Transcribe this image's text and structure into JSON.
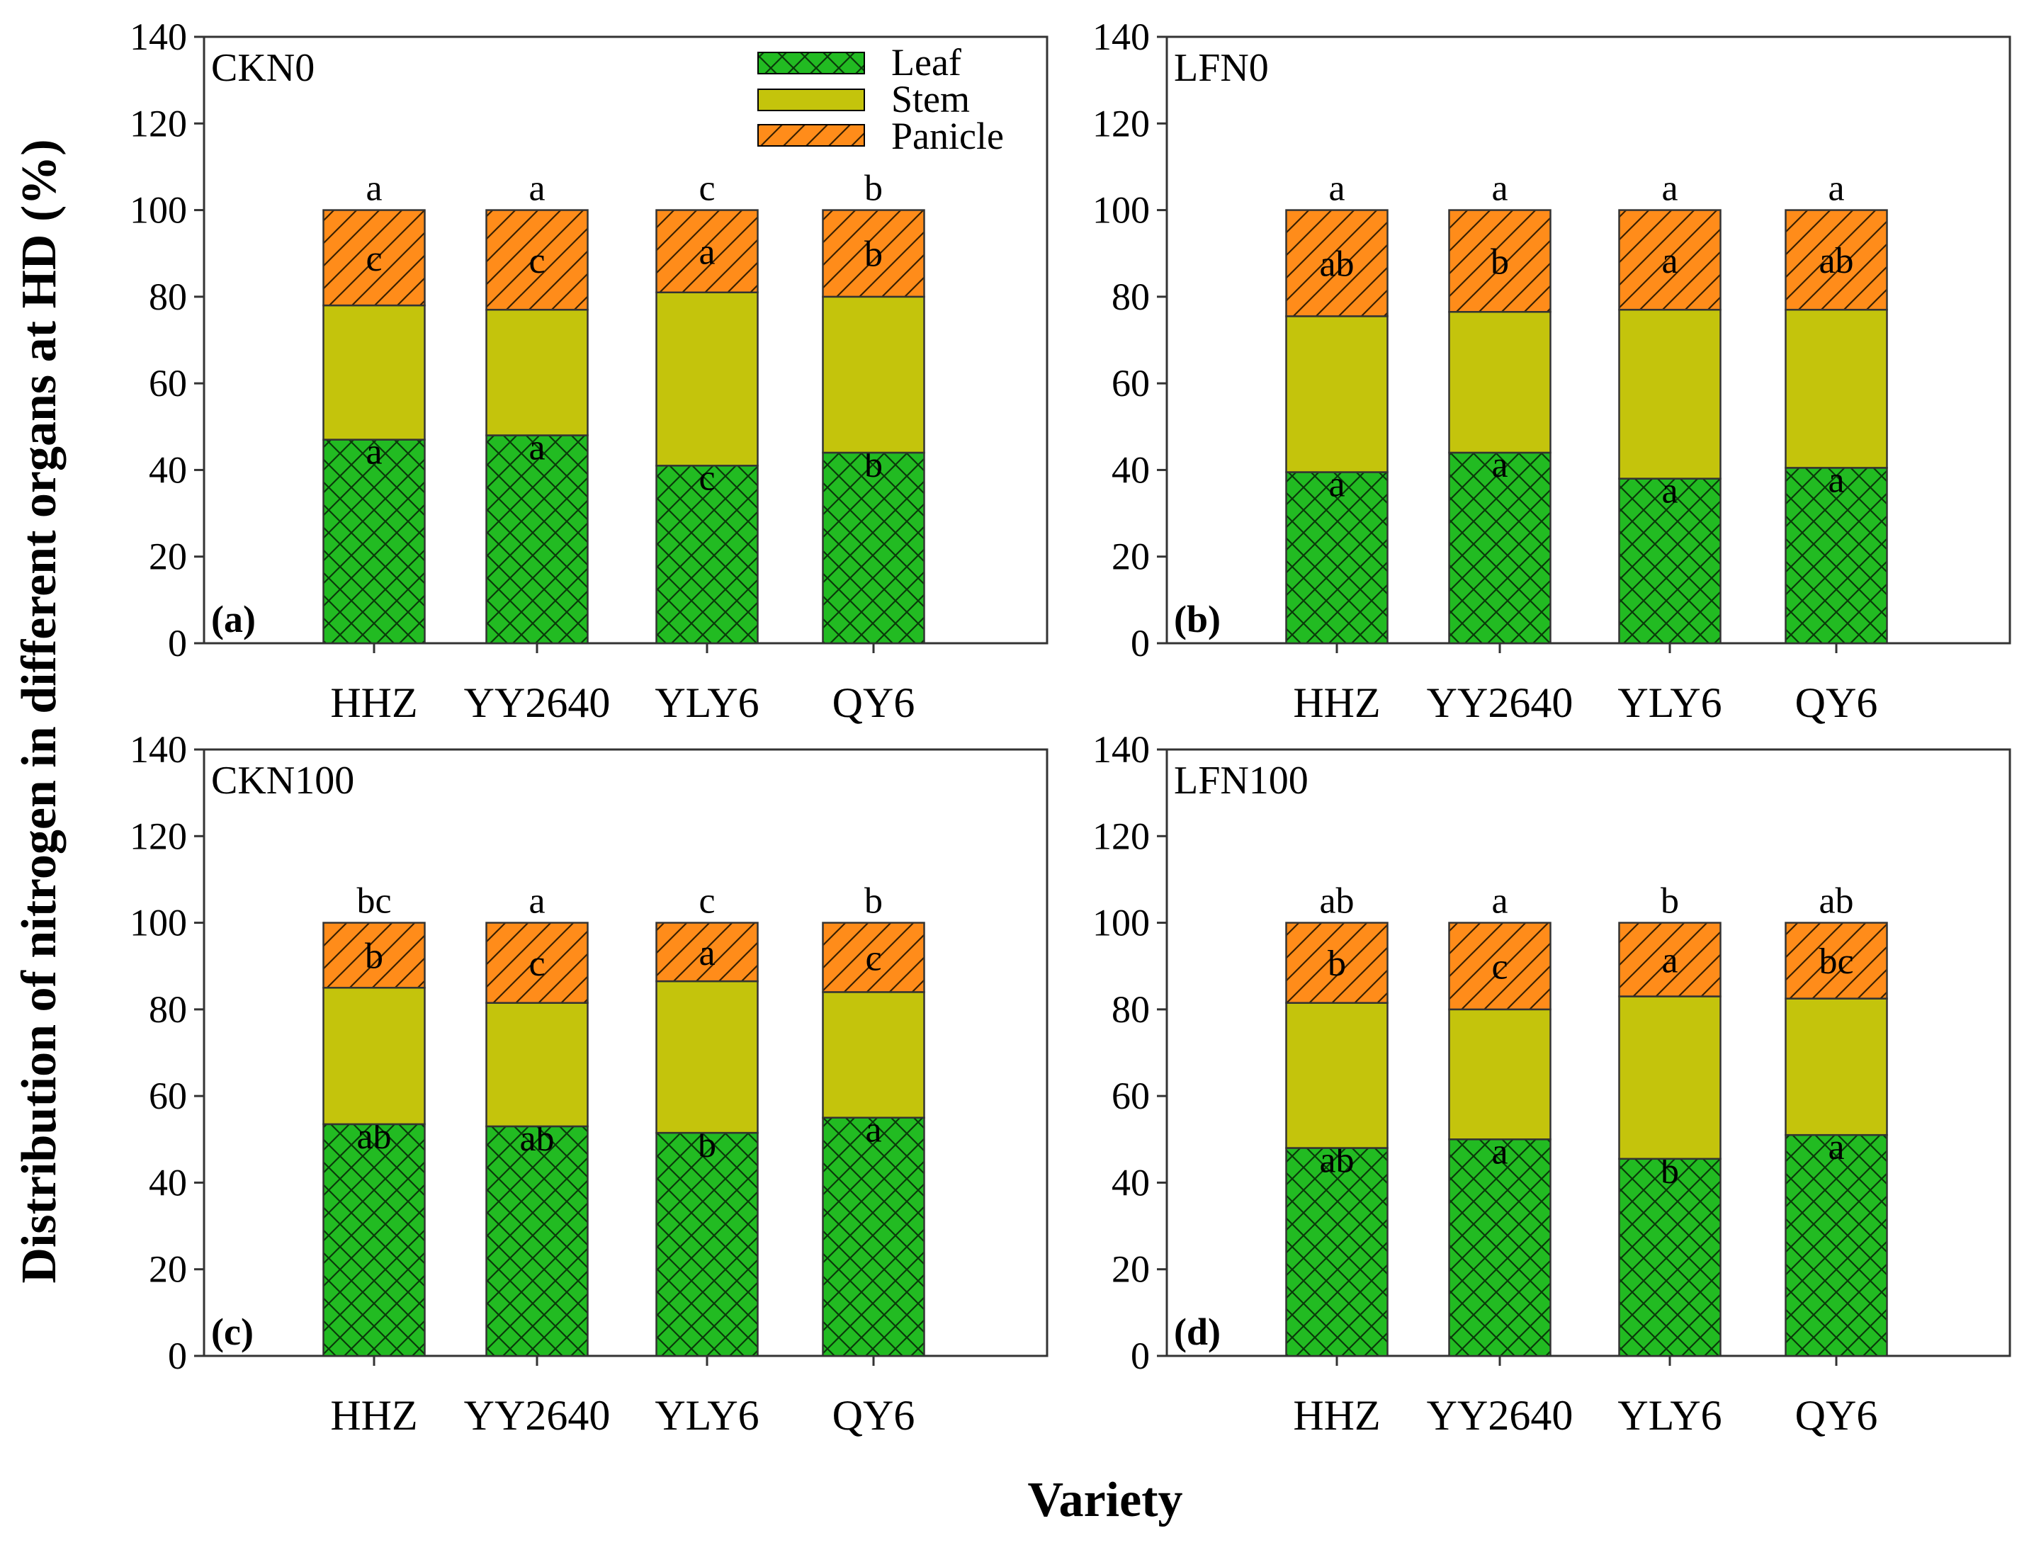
{
  "ylabel": "Distribution of nitrogen in different organs at HD (%)",
  "xlabel": "Variety",
  "legend": [
    {
      "key": "leaf",
      "label": "Leaf",
      "color": "#22BB22",
      "pattern": "crosshatch"
    },
    {
      "key": "stem",
      "label": "Stem",
      "color": "#C4C40C",
      "pattern": "solid"
    },
    {
      "key": "panicle",
      "label": "Panicle",
      "color": "#FF8C1A",
      "pattern": "diagonal"
    }
  ],
  "chart_data": [
    {
      "type": "bar",
      "stacked": true,
      "title": "CKN0",
      "tag": "(a)",
      "categories": [
        "HHZ",
        "YY2640",
        "YLY6",
        "QY6"
      ],
      "ylim": [
        0,
        140
      ],
      "yticks": [
        0,
        20,
        40,
        60,
        80,
        100,
        120,
        140
      ],
      "series": [
        {
          "name": "Leaf",
          "values": [
            47,
            48,
            41,
            44
          ],
          "letters": [
            "a",
            "a",
            "c",
            "b"
          ]
        },
        {
          "name": "Stem",
          "values": [
            31,
            29,
            40,
            36
          ],
          "letters": [
            "",
            "",
            "",
            ""
          ]
        },
        {
          "name": "Panicle",
          "values": [
            22,
            23,
            19,
            20
          ],
          "letters": [
            "c",
            "c",
            "a",
            "b"
          ]
        }
      ],
      "top_letters": [
        "a",
        "a",
        "c",
        "b"
      ]
    },
    {
      "type": "bar",
      "stacked": true,
      "title": "LFN0",
      "tag": "(b)",
      "categories": [
        "HHZ",
        "YY2640",
        "YLY6",
        "QY6"
      ],
      "ylim": [
        0,
        140
      ],
      "yticks": [
        0,
        20,
        40,
        60,
        80,
        100,
        120,
        140
      ],
      "series": [
        {
          "name": "Leaf",
          "values": [
            39.5,
            44,
            38,
            40.5
          ],
          "letters": [
            "a",
            "a",
            "a",
            "a"
          ]
        },
        {
          "name": "Stem",
          "values": [
            36,
            32.5,
            39,
            36.5
          ],
          "letters": [
            "",
            "",
            "",
            ""
          ]
        },
        {
          "name": "Panicle",
          "values": [
            24.5,
            23.5,
            23,
            23
          ],
          "letters": [
            "ab",
            "b",
            "a",
            "ab"
          ]
        }
      ],
      "top_letters": [
        "a",
        "a",
        "a",
        "a"
      ]
    },
    {
      "type": "bar",
      "stacked": true,
      "title": "CKN100",
      "tag": "(c)",
      "categories": [
        "HHZ",
        "YY2640",
        "YLY6",
        "QY6"
      ],
      "ylim": [
        0,
        140
      ],
      "yticks": [
        0,
        20,
        40,
        60,
        80,
        100,
        120,
        140
      ],
      "series": [
        {
          "name": "Leaf",
          "values": [
            53.5,
            53,
            51.5,
            55
          ],
          "letters": [
            "ab",
            "ab",
            "b",
            "a"
          ]
        },
        {
          "name": "Stem",
          "values": [
            31.5,
            28.5,
            35,
            29
          ],
          "letters": [
            "",
            "",
            "",
            ""
          ]
        },
        {
          "name": "Panicle",
          "values": [
            15,
            18.5,
            13.5,
            16
          ],
          "letters": [
            "b",
            "c",
            "a",
            "c"
          ]
        }
      ],
      "top_letters": [
        "bc",
        "a",
        "c",
        "b"
      ]
    },
    {
      "type": "bar",
      "stacked": true,
      "title": "LFN100",
      "tag": "(d)",
      "categories": [
        "HHZ",
        "YY2640",
        "YLY6",
        "QY6"
      ],
      "ylim": [
        0,
        140
      ],
      "yticks": [
        0,
        20,
        40,
        60,
        80,
        100,
        120,
        140
      ],
      "series": [
        {
          "name": "Leaf",
          "values": [
            48,
            50,
            45.5,
            51
          ],
          "letters": [
            "ab",
            "a",
            "b",
            "a"
          ]
        },
        {
          "name": "Stem",
          "values": [
            33.5,
            30,
            37.5,
            31.5
          ],
          "letters": [
            "",
            "",
            "",
            ""
          ]
        },
        {
          "name": "Panicle",
          "values": [
            18.5,
            20,
            17,
            17.5
          ],
          "letters": [
            "b",
            "c",
            "a",
            "bc"
          ]
        }
      ],
      "top_letters": [
        "ab",
        "a",
        "b",
        "ab"
      ]
    }
  ]
}
